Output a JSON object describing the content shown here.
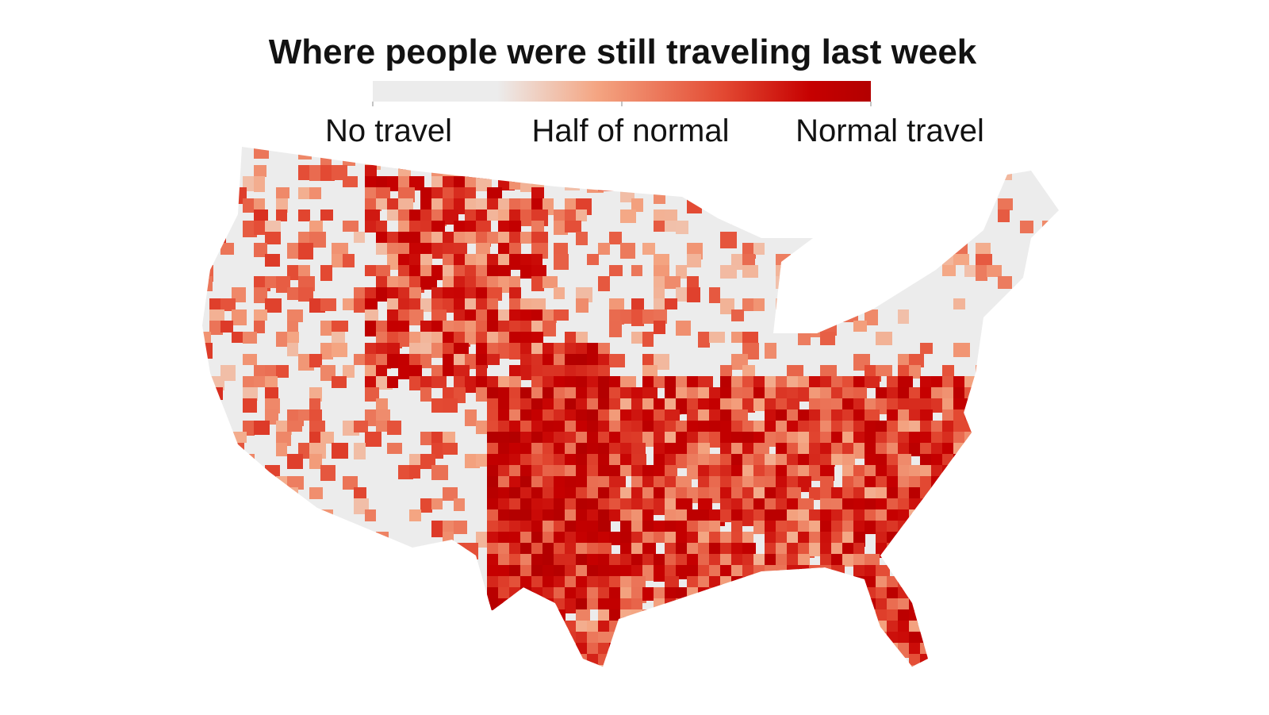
{
  "header": {
    "title": "Where people were still traveling last week"
  },
  "legend": {
    "labels": [
      "No travel",
      "Half of normal",
      "Normal travel"
    ]
  }
}
